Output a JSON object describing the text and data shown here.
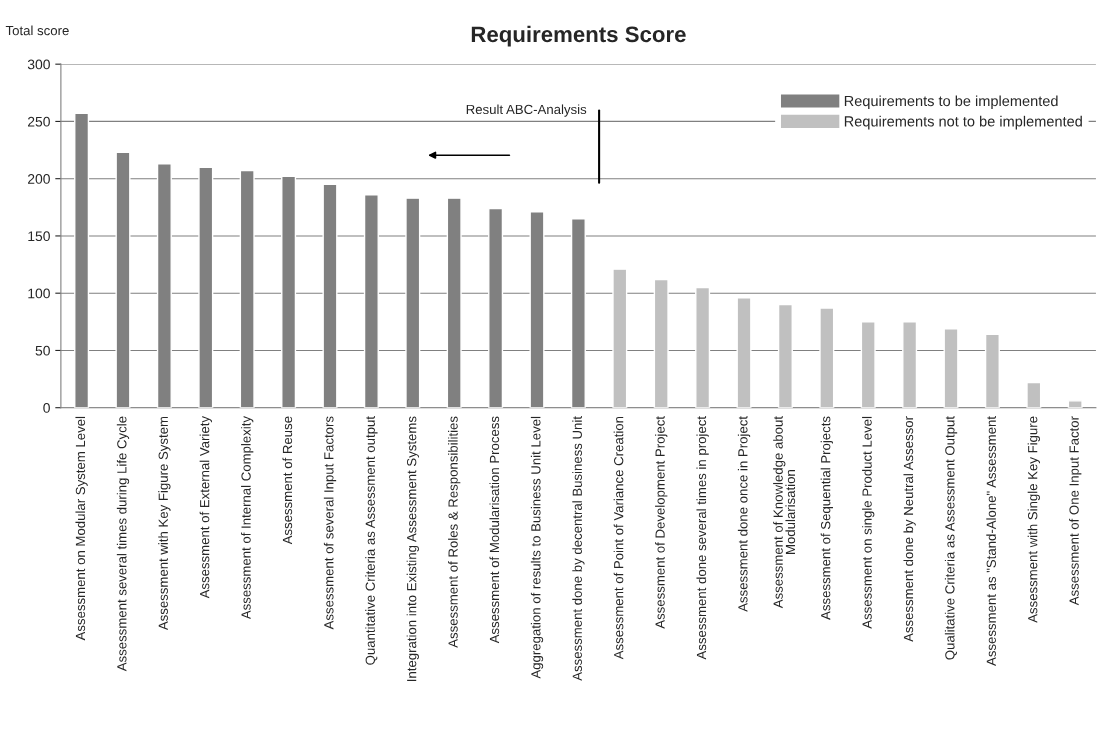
{
  "chart_data": {
    "type": "bar",
    "title": "Requirements Score",
    "ylabel": "Total score",
    "categories": [
      "Assessment on Modular System Level",
      "Assessment several times during Life Cycle",
      "Assessment with Key Figure System",
      "Assessment of External Variety",
      "Assessment of Internal Complexity",
      "Assessment of Reuse",
      "Assessment of several Input Factors",
      "Quantitative Criteria as Assessment output",
      "Integration into Existing Assessment Systems",
      "Assessment of Roles & Responsibilities",
      "Assessment of Modularisation Process",
      "Aggregation of results to Business Unit Level",
      "Assessment done by decentral Business Unit",
      "Assessment of Point of Variance Creation",
      "Assessment of Development Project",
      "Assessment done several times in project",
      "Assessment done once in Project",
      "Assessment of Knowledge about\nModularisation",
      "Assessment of Sequential Projects",
      "Assessment on single Product Level",
      "Assessment done by Neutral Assessor",
      "Qualitative Criteria as Assessment Output",
      "Assessment as \"Stand-Alone\" Assessment",
      "Assessment with Single Key Figure",
      "Assessment of One Input Factor"
    ],
    "series": [
      {
        "name": "Requirements to be implemented",
        "color": "#808080",
        "values": [
          257,
          223,
          213,
          210,
          207,
          202,
          195,
          186,
          183,
          183,
          174,
          171,
          165,
          null,
          null,
          null,
          null,
          null,
          null,
          null,
          null,
          null,
          null,
          null,
          null
        ]
      },
      {
        "name": "Requirements not to be implemented",
        "color": "#c0c0c0",
        "values": [
          null,
          null,
          null,
          null,
          null,
          null,
          null,
          null,
          null,
          null,
          null,
          null,
          null,
          121,
          112,
          105,
          96,
          90,
          87,
          75,
          75,
          69,
          64,
          22,
          6
        ]
      }
    ],
    "ylim": [
      0,
      300
    ],
    "yticks": [
      0,
      50,
      100,
      150,
      200,
      250,
      300
    ],
    "grid": "y",
    "legend": "top right",
    "annotations": [
      "Result ABC-Analysis"
    ]
  }
}
